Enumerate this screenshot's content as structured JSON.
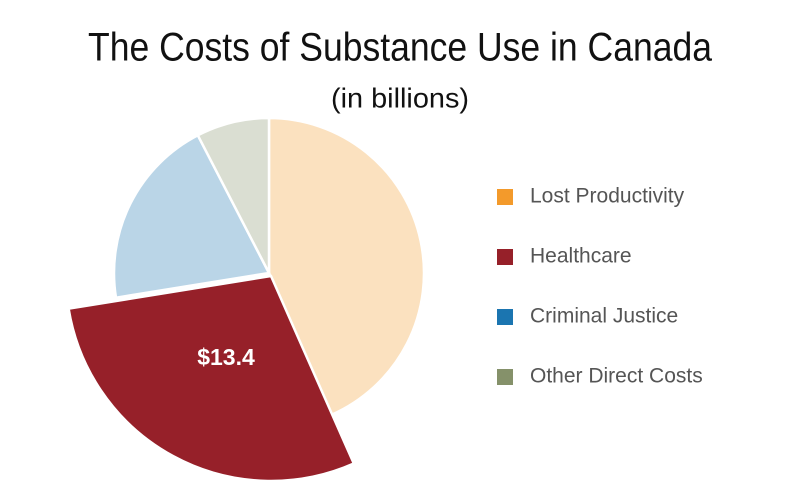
{
  "chart_data": {
    "type": "pie",
    "title": "The Costs of Substance Use in Canada",
    "subtitle": "(in billions)",
    "categories": [
      "Lost Productivity",
      "Healthcare",
      "Criminal Justice",
      "Other Direct Costs"
    ],
    "values": [
      20.0,
      13.4,
      9.2,
      3.5
    ],
    "value_labels": [
      null,
      "$13.4",
      null,
      null
    ],
    "colors": [
      "#f39a2b",
      "#962029",
      "#1b75b0",
      "#85916a"
    ],
    "highlight_index": 1,
    "legend": "right"
  }
}
